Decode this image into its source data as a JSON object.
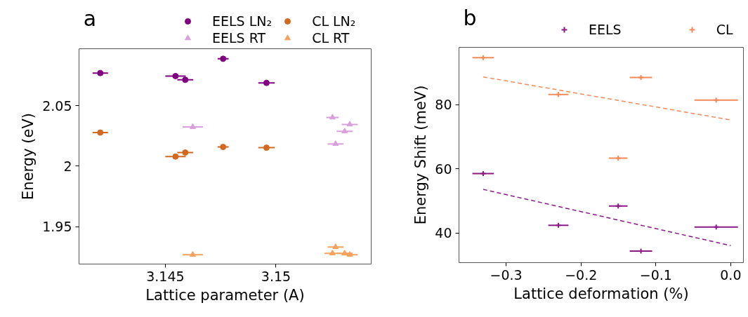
{
  "chart_data": [
    {
      "type": "scatter",
      "annotations": [
        "a"
      ],
      "xlabel": "Lattice parameter (A)",
      "ylabel": "Energy (eV)",
      "xlim": [
        3.1411,
        3.1543
      ],
      "ylim": [
        1.919,
        2.097
      ],
      "xticks": [
        3.145,
        3.15
      ],
      "yticks": [
        1.95,
        2.0,
        2.05
      ],
      "legend": "top",
      "grid": false,
      "series": [
        {
          "name": "EELS LN₂",
          "color": "#800080",
          "marker": "circle",
          "x": [
            3.14206,
            3.14546,
            3.1459,
            3.14761,
            3.14957
          ],
          "values": [
            2.0769,
            2.0744,
            2.0713,
            2.0887,
            2.0688
          ],
          "xerrors": [
            0.00035,
            0.00046,
            0.00036,
            0.00025,
            0.00037
          ]
        },
        {
          "name": "EELS RT",
          "color": "#d9a0dd",
          "marker": "triangle",
          "x": [
            3.14624,
            3.15255,
            3.15333,
            3.1531,
            3.15269
          ],
          "values": [
            2.0323,
            2.0402,
            2.0344,
            2.0287,
            2.0183
          ],
          "xerrors": [
            0.00046,
            0.00028,
            0.00036,
            0.00036,
            0.00036
          ]
        },
        {
          "name": "CL LN₂",
          "color": "#d2691e",
          "marker": "circle",
          "x": [
            3.14206,
            3.14546,
            3.1459,
            3.14761,
            3.14957
          ],
          "values": [
            2.0277,
            2.0079,
            2.0112,
            2.0158,
            2.0152
          ],
          "xerrors": [
            0.00035,
            0.00046,
            0.00036,
            0.00025,
            0.00037
          ]
        },
        {
          "name": "CL RT",
          "color": "#f4a25c",
          "marker": "triangle",
          "x": [
            3.14624,
            3.15269,
            3.15255,
            3.1531,
            3.15333
          ],
          "values": [
            1.9267,
            1.9331,
            1.9279,
            1.9279,
            1.9267
          ],
          "xerrors": [
            0.00046,
            0.00036,
            0.00036,
            0.00036,
            0.00036
          ]
        }
      ]
    },
    {
      "type": "scatter",
      "annotations": [
        "b"
      ],
      "xlabel": "Lattice deformation (%)",
      "ylabel": "Energy Shift (meV)",
      "xlim": [
        -0.363,
        0.017
      ],
      "ylim": [
        30.8,
        97.8
      ],
      "xticks": [
        {
          "value": -0.3,
          "label": "−0.3"
        },
        {
          "value": -0.2,
          "label": "−0.2"
        },
        {
          "value": -0.1,
          "label": "−0.1"
        },
        {
          "value": 0.0,
          "label": "0.0"
        }
      ],
      "yticks": [
        40,
        60,
        80
      ],
      "legend": "top",
      "grid": false,
      "series": [
        {
          "name": "EELS",
          "color": "#8b1a89",
          "marker": "cross",
          "x": [
            -0.3307,
            -0.2302,
            -0.1503,
            -0.1199,
            -0.0194
          ],
          "values": [
            58.5,
            42.4,
            48.4,
            34.4,
            41.9
          ],
          "xerrors": [
            0.0144,
            0.0135,
            0.0125,
            0.015,
            0.0291
          ]
        },
        {
          "name": "CL",
          "color": "#f48a58",
          "marker": "cross",
          "x": [
            -0.3307,
            -0.2302,
            -0.1503,
            -0.1199,
            -0.0194
          ],
          "values": [
            94.6,
            83.1,
            63.3,
            88.4,
            81.4
          ],
          "xerrors": [
            0.0144,
            0.0135,
            0.0125,
            0.015,
            0.0291
          ]
        },
        {
          "type": "line",
          "color": "#8b1a89",
          "line_style": "dashed",
          "x": [
            -0.3307,
            0.0
          ],
          "values": [
            53.6,
            36.1
          ]
        },
        {
          "type": "line",
          "color": "#f48a58",
          "line_style": "dashed",
          "x": [
            -0.3307,
            0.0
          ],
          "values": [
            88.6,
            75.2
          ]
        }
      ]
    }
  ]
}
